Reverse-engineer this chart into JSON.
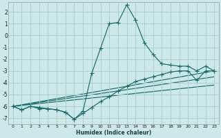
{
  "xlabel": "Humidex (Indice chaleur)",
  "background_color": "#cce8e8",
  "grid_color": "#aacfcf",
  "line_color": "#1a6b6b",
  "xlim": [
    -0.5,
    23.5
  ],
  "ylim": [
    -7.5,
    2.8
  ],
  "yticks": [
    -7,
    -6,
    -5,
    -4,
    -3,
    -2,
    -1,
    0,
    1,
    2
  ],
  "xticks": [
    0,
    1,
    2,
    3,
    4,
    5,
    6,
    7,
    8,
    9,
    10,
    11,
    12,
    13,
    14,
    15,
    16,
    17,
    18,
    19,
    20,
    21,
    22,
    23
  ],
  "curve_main_x": [
    0,
    1,
    2,
    3,
    4,
    5,
    6,
    7,
    8,
    9,
    10,
    11,
    12,
    13,
    14,
    15,
    16,
    17,
    18,
    19,
    20,
    21,
    22,
    23
  ],
  "curve_main_y": [
    -6.0,
    -6.3,
    -6.0,
    -6.1,
    -6.2,
    -6.3,
    -6.5,
    -7.1,
    -6.4,
    -3.2,
    -1.1,
    1.0,
    1.1,
    2.6,
    1.3,
    -0.6,
    -1.6,
    -2.4,
    -2.5,
    -2.6,
    -2.6,
    -3.0,
    -2.6,
    -3.0
  ],
  "curve_grad_x": [
    0,
    1,
    2,
    3,
    4,
    5,
    6,
    7,
    8,
    9,
    10,
    11,
    12,
    13,
    14,
    15,
    16,
    17,
    18,
    19,
    20,
    21,
    22,
    23
  ],
  "curve_grad_y": [
    -6.0,
    -6.3,
    -6.0,
    -6.2,
    -6.2,
    -6.3,
    -6.5,
    -7.1,
    -6.6,
    -6.1,
    -5.6,
    -5.2,
    -4.7,
    -4.3,
    -3.9,
    -3.7,
    -3.5,
    -3.3,
    -3.1,
    -3.0,
    -3.0,
    -3.8,
    -3.0,
    -3.0
  ],
  "line1_x": [
    0,
    23
  ],
  "line1_y": [
    -6.0,
    -3.0
  ],
  "line2_x": [
    0,
    23
  ],
  "line2_y": [
    -6.0,
    -3.5
  ],
  "line3_x": [
    0,
    23
  ],
  "line3_y": [
    -6.0,
    -4.2
  ]
}
